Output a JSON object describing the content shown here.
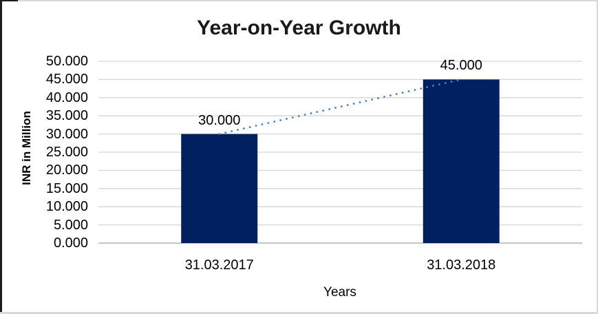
{
  "chart_data": {
    "type": "bar",
    "title": "Year-on-Year Growth",
    "ylabel": "INR in Million",
    "xlabel": "Years",
    "categories": [
      "31.03.2017",
      "31.03.2018"
    ],
    "values": [
      30,
      45
    ],
    "value_labels": [
      "30.000",
      "45.000"
    ],
    "ylim": [
      0,
      50
    ],
    "ytick_step": 5,
    "ytick_labels": [
      "0.000",
      "5.000",
      "10.000",
      "15.000",
      "20.000",
      "25.000",
      "30.000",
      "35.000",
      "40.000",
      "45.000",
      "50.000"
    ],
    "grid": true,
    "legend": "none",
    "trendline": {
      "style": "dotted",
      "connects": [
        "31.03.2017",
        "31.03.2018"
      ]
    },
    "colors": {
      "bar": "#002060",
      "trendline": "#4a80c4",
      "gridline": "#d6d6d6",
      "axis_line": "#b3b3b3",
      "title_text": "#1a1a1a",
      "text": "#000000"
    }
  }
}
